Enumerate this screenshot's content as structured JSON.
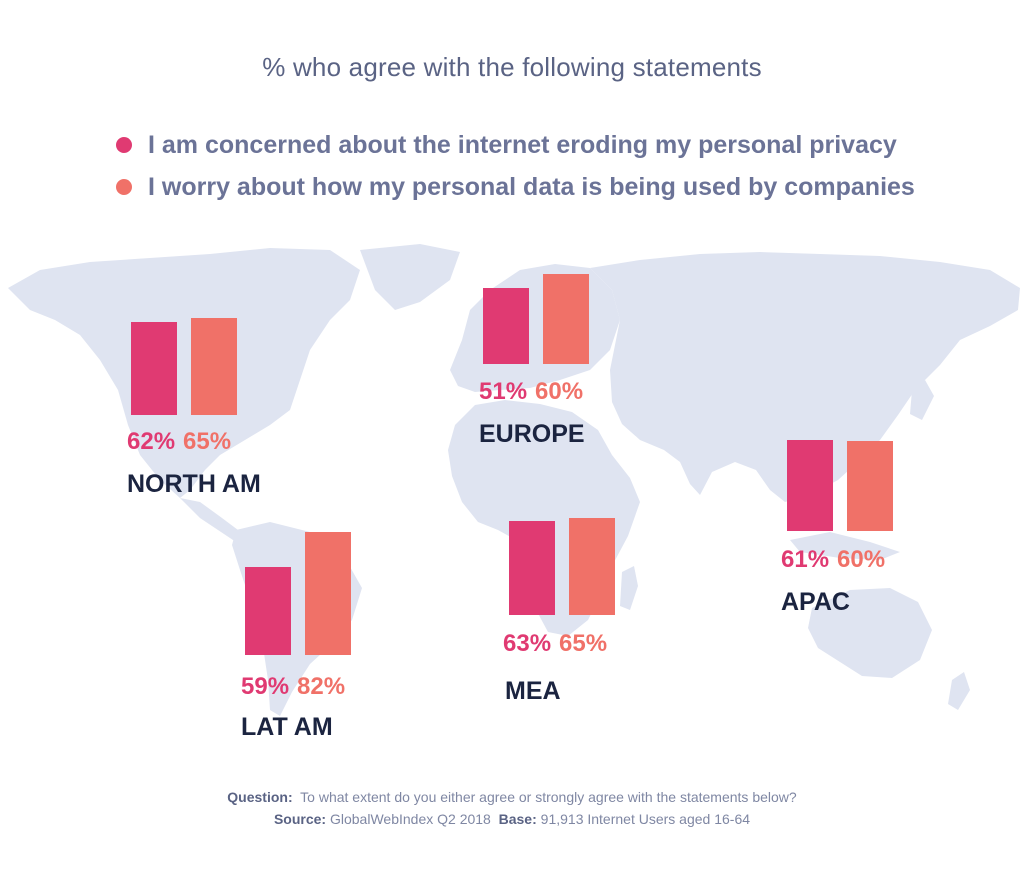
{
  "chart_data": {
    "type": "bar",
    "title": "% who agree with the following statements",
    "series": [
      {
        "name": "I am concerned about the internet eroding my personal privacy",
        "color": "#e03a72",
        "values": [
          62,
          51,
          59,
          63,
          61
        ]
      },
      {
        "name": "I worry about how my personal data is being used by companies",
        "color": "#f07168",
        "values": [
          65,
          60,
          82,
          65,
          60
        ]
      }
    ],
    "categories": [
      "NORTH AM",
      "EUROPE",
      "LAT AM",
      "MEA",
      "APAC"
    ],
    "value_labels": [
      [
        "62%",
        "65%"
      ],
      [
        "51%",
        "60%"
      ],
      [
        "59%",
        "82%"
      ],
      [
        "63%",
        "65%"
      ],
      [
        "61%",
        "60%"
      ]
    ],
    "background": "world map",
    "legend_position": "top"
  },
  "footer": {
    "question_label": "Question:",
    "question_text": "To what extent do you either agree or strongly agree with the statements below?",
    "source_label": "Source:",
    "source_text": "GlobalWebIndex Q2 2018",
    "base_label": "Base:",
    "base_text": "91,913 Internet Users aged 16-64"
  }
}
